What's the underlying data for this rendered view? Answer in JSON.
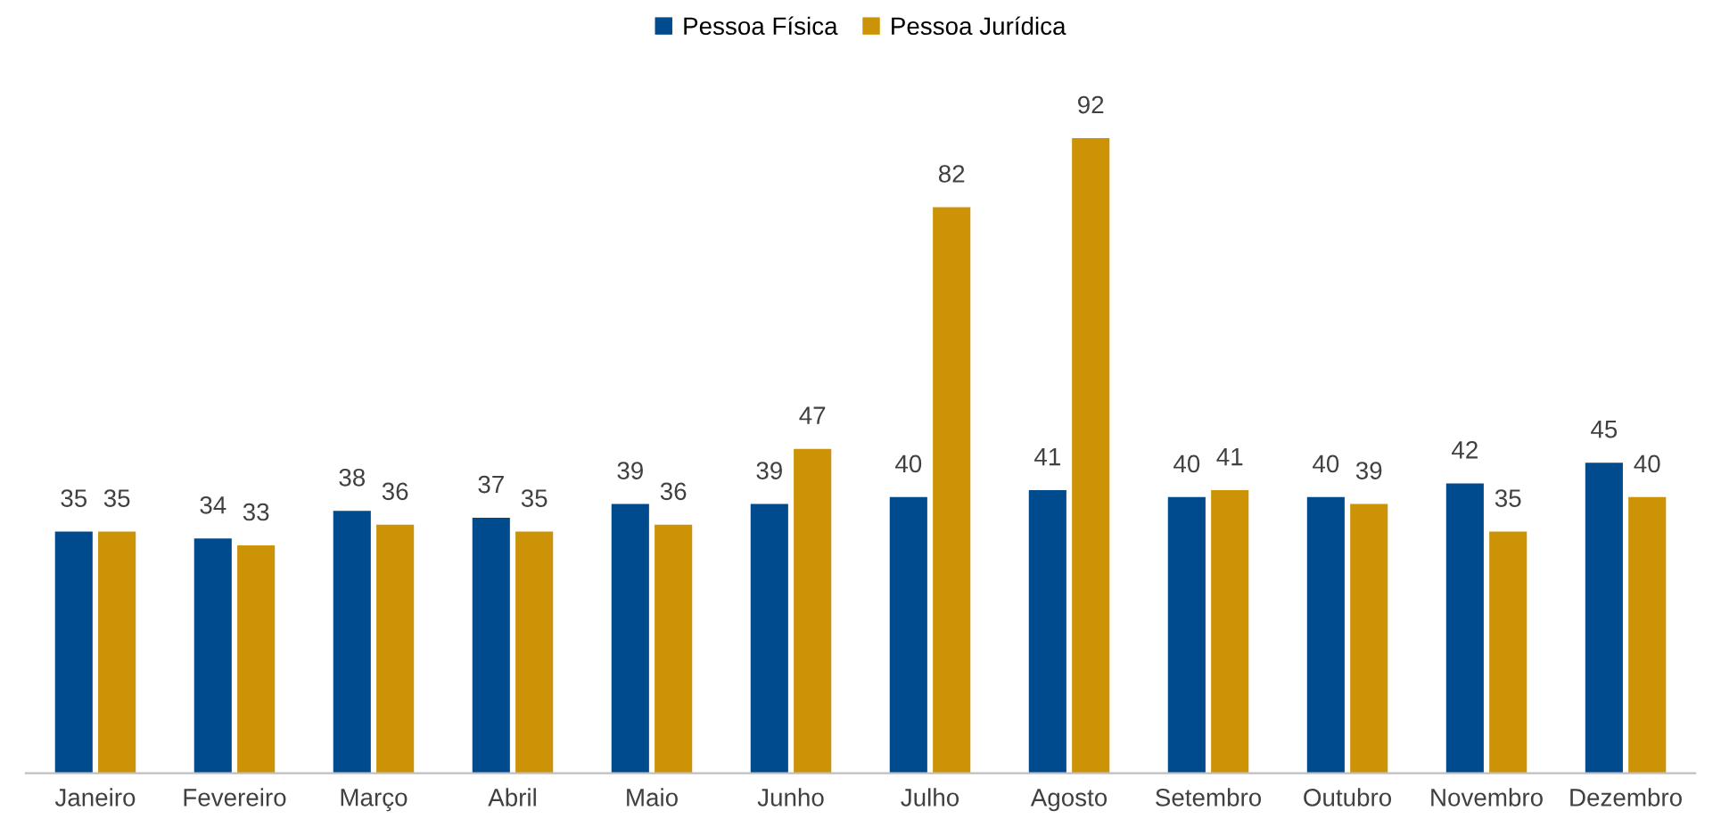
{
  "chart_data": {
    "type": "bar",
    "categories": [
      "Janeiro",
      "Fevereiro",
      "Março",
      "Abril",
      "Maio",
      "Junho",
      "Julho",
      "Agosto",
      "Setembro",
      "Outubro",
      "Novembro",
      "Dezembro"
    ],
    "series": [
      {
        "name": "Pessoa Física",
        "color": "#004b8d",
        "values": [
          35,
          34,
          38,
          37,
          39,
          39,
          40,
          41,
          40,
          40,
          42,
          45
        ]
      },
      {
        "name": "Pessoa Jurídica",
        "color": "#cc9306",
        "values": [
          35,
          33,
          36,
          35,
          36,
          47,
          82,
          92,
          41,
          39,
          35,
          40
        ]
      }
    ],
    "data_labels": true,
    "legend": "top",
    "grid": false
  }
}
